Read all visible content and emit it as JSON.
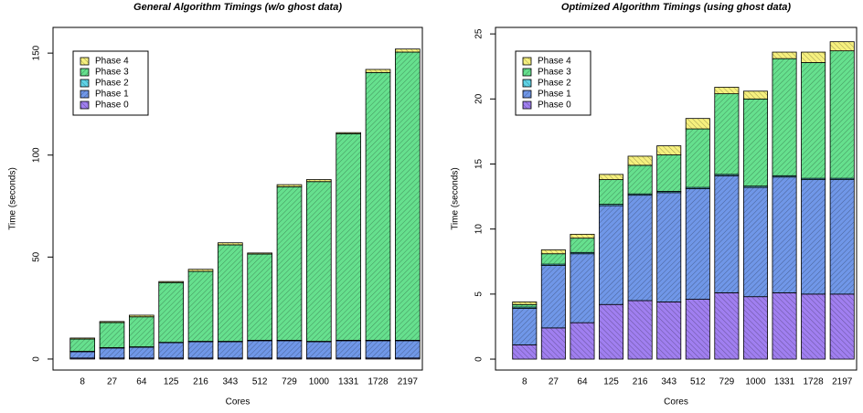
{
  "chart_data": [
    {
      "type": "stacked-bar",
      "title": "General Algorithm Timings (w/o ghost data)",
      "xlabel": "Cores",
      "ylabel": "Time (seconds)",
      "categories": [
        "8",
        "27",
        "64",
        "125",
        "216",
        "343",
        "512",
        "729",
        "1000",
        "1331",
        "1728",
        "2197"
      ],
      "series": [
        {
          "name": "Phase 0",
          "color": "#a07ff0",
          "values": [
            0.5,
            0.5,
            0.5,
            0.5,
            0.5,
            0.5,
            0.5,
            0.5,
            0.5,
            0.5,
            0.5,
            0.5
          ]
        },
        {
          "name": "Phase 1",
          "color": "#7097e8",
          "values": [
            3.1,
            4.9,
            5.3,
            7.5,
            8,
            8,
            8.5,
            8.5,
            8,
            8.5,
            8.5,
            8.5
          ]
        },
        {
          "name": "Phase 2",
          "color": "#5fd3e6",
          "values": [
            0.2,
            0.2,
            0.2,
            0.2,
            0.2,
            0.2,
            0.2,
            0.2,
            0.2,
            0.2,
            0.2,
            0.2
          ]
        },
        {
          "name": "Phase 3",
          "color": "#66e08e",
          "values": [
            6.0,
            12.3,
            14.7,
            29.3,
            34.3,
            47.3,
            42.3,
            75.3,
            78.3,
            101.3,
            131.3,
            141.3
          ]
        },
        {
          "name": "Phase 4",
          "color": "#f6f07e",
          "values": [
            0.5,
            0.5,
            0.8,
            0.5,
            1,
            1,
            0.5,
            1,
            1,
            0.5,
            1.5,
            1.5
          ]
        }
      ],
      "ylim": [
        -5.4,
        162.6
      ],
      "yticks": [
        0,
        50,
        100,
        150
      ],
      "legend": "topleft"
    },
    {
      "type": "stacked-bar",
      "title": "Optimized Algorithm Timings (using ghost data)",
      "xlabel": "Cores",
      "ylabel": "Time (seconds)",
      "categories": [
        "8",
        "27",
        "64",
        "125",
        "216",
        "343",
        "512",
        "729",
        "1000",
        "1331",
        "1728",
        "2197"
      ],
      "series": [
        {
          "name": "Phase 0",
          "color": "#a07ff0",
          "values": [
            1.1,
            2.4,
            2.8,
            4.2,
            4.5,
            4.4,
            4.6,
            5.1,
            4.8,
            5.1,
            5.0,
            5.0
          ]
        },
        {
          "name": "Phase 1",
          "color": "#7097e8",
          "values": [
            2.8,
            4.8,
            5.3,
            7.6,
            8.1,
            8.4,
            8.5,
            9.0,
            8.4,
            8.9,
            8.8,
            8.8
          ]
        },
        {
          "name": "Phase 2",
          "color": "#5fd3e6",
          "values": [
            0.1,
            0.1,
            0.1,
            0.1,
            0.1,
            0.1,
            0.1,
            0.1,
            0.1,
            0.1,
            0.1,
            0.1
          ]
        },
        {
          "name": "Phase 3",
          "color": "#66e08e",
          "values": [
            0.2,
            0.8,
            1.1,
            1.9,
            2.2,
            2.8,
            4.5,
            6.2,
            6.7,
            9.0,
            8.9,
            9.8
          ]
        },
        {
          "name": "Phase 4",
          "color": "#f6f07e",
          "values": [
            0.2,
            0.3,
            0.3,
            0.4,
            0.7,
            0.7,
            0.8,
            0.5,
            0.6,
            0.5,
            0.8,
            0.7
          ]
        }
      ],
      "ylim": [
        -0.84,
        25.5
      ],
      "yticks": [
        0,
        5,
        10,
        15,
        20,
        25
      ],
      "legend": "topleft"
    }
  ]
}
